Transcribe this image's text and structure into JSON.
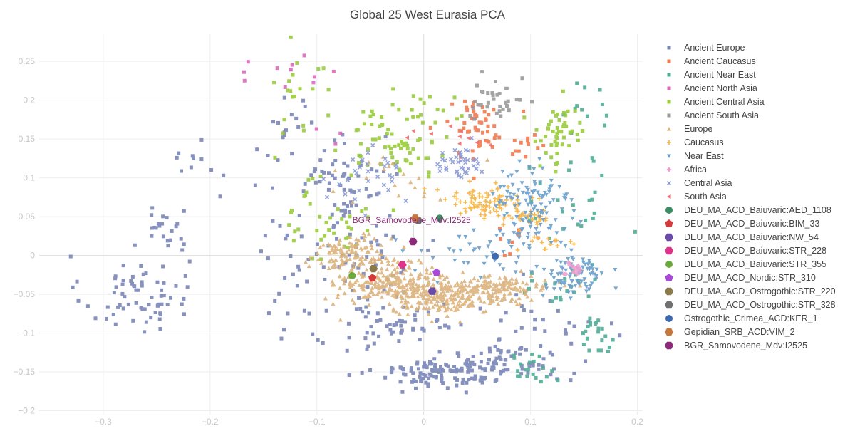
{
  "chart_data": {
    "type": "scatter",
    "title": "Global 25 West Eurasia PCA",
    "xlabel": "",
    "ylabel": "",
    "xlim": [
      -0.36,
      0.205
    ],
    "ylim": [
      -0.205,
      0.285
    ],
    "x_ticks": [
      {
        "value": -0.3,
        "label": "−0.3"
      },
      {
        "value": -0.2,
        "label": "−0.2"
      },
      {
        "value": -0.1,
        "label": "−0.1"
      },
      {
        "value": 0,
        "label": "0"
      },
      {
        "value": 0.1,
        "label": "0.1"
      },
      {
        "value": 0.2,
        "label": "0.2"
      }
    ],
    "y_ticks": [
      {
        "value": 0.25,
        "label": "0.25"
      },
      {
        "value": 0.2,
        "label": "0.2"
      },
      {
        "value": 0.15,
        "label": "0.15"
      },
      {
        "value": 0.1,
        "label": "0.1"
      },
      {
        "value": 0.05,
        "label": "0.05"
      },
      {
        "value": 0,
        "label": "0"
      },
      {
        "value": -0.05,
        "label": "−0.05"
      },
      {
        "value": -0.1,
        "label": "−0.1"
      },
      {
        "value": -0.15,
        "label": "−0.15"
      },
      {
        "value": -0.2,
        "label": "−0.2"
      }
    ],
    "grid": true,
    "legend_position": "right",
    "annotation": {
      "text": "BGR_Samovodene_Mdv:I2525",
      "x": -0.01,
      "y": 0.018
    },
    "series": [
      {
        "name": "Ancient Europe",
        "color": "#7986b8",
        "marker": "square",
        "clusters": [
          {
            "x": -0.27,
            "y": -0.05,
            "sx": 0.025,
            "sy": 0.025,
            "n": 70
          },
          {
            "x": -0.24,
            "y": 0.035,
            "sx": 0.012,
            "sy": 0.02,
            "n": 22
          },
          {
            "x": -0.215,
            "y": 0.125,
            "sx": 0.015,
            "sy": 0.012,
            "n": 10
          },
          {
            "x": 0.015,
            "y": -0.15,
            "sx": 0.03,
            "sy": 0.01,
            "n": 110
          },
          {
            "x": 0.075,
            "y": -0.14,
            "sx": 0.03,
            "sy": 0.012,
            "n": 80
          },
          {
            "x": -0.03,
            "y": -0.09,
            "sx": 0.04,
            "sy": 0.02,
            "n": 60
          },
          {
            "x": -0.075,
            "y": 0.005,
            "sx": 0.045,
            "sy": 0.045,
            "n": 90
          },
          {
            "x": -0.075,
            "y": 0.11,
            "sx": 0.03,
            "sy": 0.025,
            "n": 50
          },
          {
            "x": -0.12,
            "y": 0.18,
            "sx": 0.015,
            "sy": 0.02,
            "n": 12
          },
          {
            "x": 0.11,
            "y": -0.085,
            "sx": 0.025,
            "sy": 0.02,
            "n": 25
          }
        ]
      },
      {
        "name": "Ancient Caucasus",
        "color": "#f07a50",
        "marker": "square",
        "clusters": [
          {
            "x": 0.05,
            "y": 0.165,
            "sx": 0.015,
            "sy": 0.02,
            "n": 50
          },
          {
            "x": 0.095,
            "y": 0.14,
            "sx": 0.01,
            "sy": 0.008,
            "n": 12
          },
          {
            "x": 0.085,
            "y": 0.03,
            "sx": 0.012,
            "sy": 0.015,
            "n": 8
          }
        ]
      },
      {
        "name": "Ancient Near East",
        "color": "#4fae96",
        "marker": "square",
        "clusters": [
          {
            "x": 0.1,
            "y": -0.145,
            "sx": 0.012,
            "sy": 0.01,
            "n": 20
          },
          {
            "x": 0.16,
            "y": -0.1,
            "sx": 0.008,
            "sy": 0.012,
            "n": 22
          },
          {
            "x": 0.13,
            "y": -0.05,
            "sx": 0.02,
            "sy": 0.015,
            "n": 20
          },
          {
            "x": 0.14,
            "y": 0.09,
            "sx": 0.025,
            "sy": 0.05,
            "n": 25
          },
          {
            "x": 0.15,
            "y": 0.19,
            "sx": 0.015,
            "sy": 0.02,
            "n": 12
          }
        ]
      },
      {
        "name": "Ancient North Asia",
        "color": "#d86bb8",
        "marker": "square",
        "clusters": [
          {
            "x": -0.11,
            "y": 0.235,
            "sx": 0.015,
            "sy": 0.01,
            "n": 8
          },
          {
            "x": -0.16,
            "y": 0.24,
            "sx": 0.005,
            "sy": 0.006,
            "n": 3
          },
          {
            "x": -0.1,
            "y": 0.15,
            "sx": 0.01,
            "sy": 0.01,
            "n": 3
          }
        ]
      },
      {
        "name": "Ancient Central Asia",
        "color": "#9acc3c",
        "marker": "square",
        "clusters": [
          {
            "x": -0.085,
            "y": 0.05,
            "sx": 0.02,
            "sy": 0.03,
            "n": 40
          },
          {
            "x": -0.025,
            "y": 0.15,
            "sx": 0.025,
            "sy": 0.025,
            "n": 70
          },
          {
            "x": -0.12,
            "y": 0.21,
            "sx": 0.02,
            "sy": 0.03,
            "n": 20
          },
          {
            "x": 0.02,
            "y": 0.19,
            "sx": 0.02,
            "sy": 0.012,
            "n": 10
          },
          {
            "x": 0.125,
            "y": 0.155,
            "sx": 0.015,
            "sy": 0.02,
            "n": 50
          }
        ]
      },
      {
        "name": "Ancient South Asia",
        "color": "#9b9b9b",
        "marker": "square",
        "clusters": [
          {
            "x": 0.07,
            "y": 0.2,
            "sx": 0.012,
            "sy": 0.015,
            "n": 35
          }
        ]
      },
      {
        "name": "Europe",
        "color": "#dcb37c",
        "marker": "triangle-up",
        "clusters": [
          {
            "x": -0.07,
            "y": 0.0,
            "sx": 0.02,
            "sy": 0.012,
            "n": 120
          },
          {
            "x": -0.03,
            "y": -0.035,
            "sx": 0.025,
            "sy": 0.012,
            "n": 220
          },
          {
            "x": 0.02,
            "y": -0.055,
            "sx": 0.025,
            "sy": 0.01,
            "n": 200
          },
          {
            "x": 0.07,
            "y": -0.042,
            "sx": 0.025,
            "sy": 0.008,
            "n": 140
          },
          {
            "x": -0.035,
            "y": 0.095,
            "sx": 0.03,
            "sy": 0.02,
            "n": 20
          }
        ]
      },
      {
        "name": "Caucasus",
        "color": "#f6b443",
        "marker": "cross",
        "clusters": [
          {
            "x": 0.055,
            "y": 0.07,
            "sx": 0.02,
            "sy": 0.01,
            "n": 80
          },
          {
            "x": 0.095,
            "y": 0.05,
            "sx": 0.015,
            "sy": 0.008,
            "n": 40
          },
          {
            "x": 0.12,
            "y": 0.015,
            "sx": 0.01,
            "sy": 0.008,
            "n": 15
          }
        ]
      },
      {
        "name": "Near East",
        "color": "#6a9ecb",
        "marker": "triangle-down",
        "clusters": [
          {
            "x": 0.1,
            "y": 0.06,
            "sx": 0.02,
            "sy": 0.03,
            "n": 120
          },
          {
            "x": 0.14,
            "y": -0.025,
            "sx": 0.015,
            "sy": 0.015,
            "n": 80
          },
          {
            "x": 0.055,
            "y": 0.0,
            "sx": 0.03,
            "sy": 0.015,
            "n": 40
          }
        ]
      },
      {
        "name": "Africa",
        "color": "#ee9fcf",
        "marker": "diamond",
        "clusters": [
          {
            "x": 0.14,
            "y": -0.018,
            "sx": 0.006,
            "sy": 0.005,
            "n": 15
          }
        ]
      },
      {
        "name": "Central Asia",
        "color": "#8a9ad8",
        "marker": "x",
        "clusters": [
          {
            "x": 0.03,
            "y": 0.12,
            "sx": 0.015,
            "sy": 0.012,
            "n": 40
          },
          {
            "x": -0.045,
            "y": 0.1,
            "sx": 0.02,
            "sy": 0.015,
            "n": 30
          }
        ]
      },
      {
        "name": "South Asia",
        "color": "#f26a6a",
        "marker": "triangle-left",
        "clusters": [
          {
            "x": 0.03,
            "y": 0.16,
            "sx": 0.015,
            "sy": 0.008,
            "n": 10
          }
        ]
      },
      {
        "name": "DEU_MA_ACD_Baiuvaric:AED_1108",
        "color": "#3a8a62",
        "marker": "circle-big",
        "points": [
          [
            0.015,
            0.048
          ]
        ]
      },
      {
        "name": "DEU_MA_ACD_Baiuvaric:BIM_33",
        "color": "#d63a3a",
        "marker": "pentagon-big",
        "points": [
          [
            -0.048,
            -0.029
          ]
        ]
      },
      {
        "name": "DEU_MA_ACD_Baiuvaric:NW_54",
        "color": "#6a4aa8",
        "marker": "hexagon-big",
        "points": [
          [
            0.008,
            -0.046
          ]
        ]
      },
      {
        "name": "DEU_MA_ACD_Baiuvaric:STR_228",
        "color": "#e0338a",
        "marker": "hexagon-big",
        "points": [
          [
            -0.02,
            -0.012
          ]
        ]
      },
      {
        "name": "DEU_MA_ACD_Baiuvaric:STR_355",
        "color": "#6aaa3a",
        "marker": "circle-big",
        "points": [
          [
            -0.067,
            -0.026
          ]
        ]
      },
      {
        "name": "DEU_MA_ACD_Nordic:STR_310",
        "color": "#a84ad8",
        "marker": "pentagon-big",
        "points": [
          [
            0.012,
            -0.022
          ]
        ]
      },
      {
        "name": "DEU_MA_ACD_Ostrogothic:STR_220",
        "color": "#8a7a4a",
        "marker": "hexagon-big",
        "points": [
          [
            -0.047,
            -0.017
          ]
        ]
      },
      {
        "name": "DEU_MA_ACD_Ostrogothic:STR_328",
        "color": "#707070",
        "marker": "hexagon-big",
        "points": [
          [
            -0.005,
            0.045
          ]
        ]
      },
      {
        "name": "Ostrogothic_Crimea_ACD:KER_1",
        "color": "#3f6ab0",
        "marker": "circle-big",
        "points": [
          [
            0.067,
            -0.001
          ]
        ]
      },
      {
        "name": "Gepidian_SRB_ACD:VIM_2",
        "color": "#c8773a",
        "marker": "hexagon-big",
        "points": [
          [
            -0.008,
            0.048
          ]
        ]
      },
      {
        "name": "BGR_Samovodene_Mdv:I2525",
        "color": "#8a2a78",
        "marker": "hexagon-big",
        "points": [
          [
            -0.01,
            0.018
          ]
        ]
      }
    ]
  }
}
